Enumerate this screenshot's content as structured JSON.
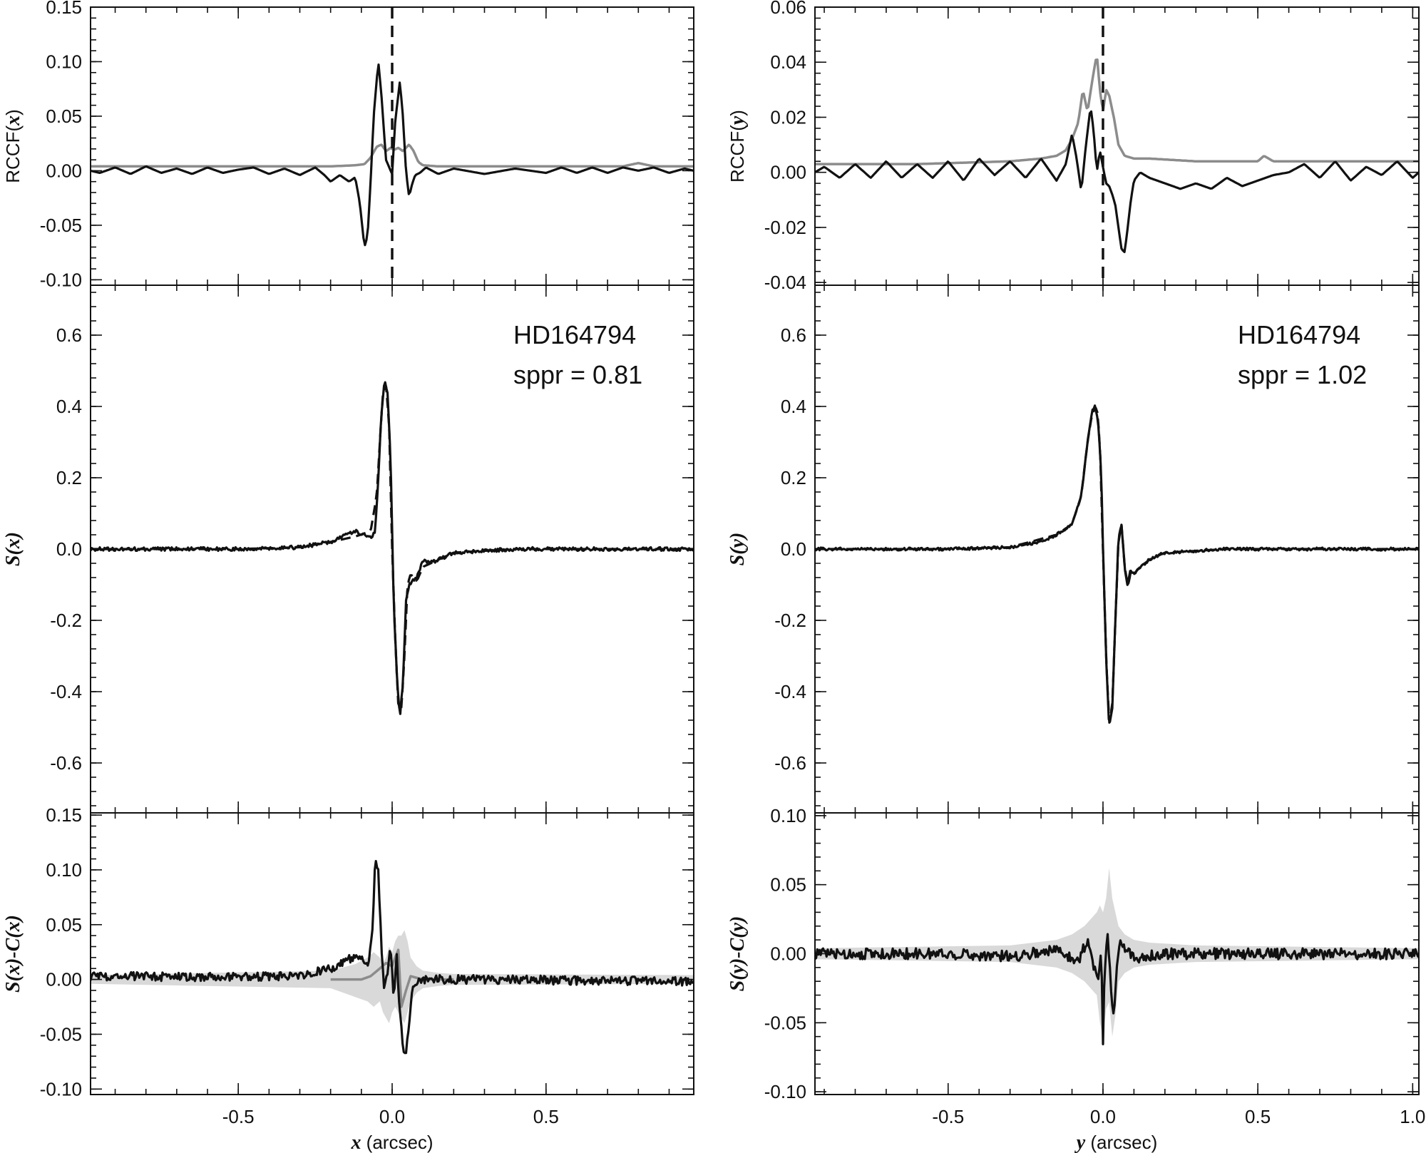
{
  "chart_data": [
    {
      "type": "line",
      "panel": "top-left",
      "ylabel": "RCCF(x)",
      "ylabel_parts": [
        "RCCF(",
        "x",
        ")"
      ],
      "xlim": [
        -0.98,
        0.98
      ],
      "ylim": [
        -0.105,
        0.15
      ],
      "yticks": [
        -0.1,
        -0.05,
        0.0,
        0.05,
        0.1,
        0.15
      ],
      "ytick_labels": [
        "-0.10",
        "-0.05",
        "0.00",
        "0.05",
        "0.10",
        "0.15"
      ],
      "vline_x": 0.0,
      "series": [
        {
          "color": "#8c8c8c",
          "x": [
            -0.98,
            -0.7,
            -0.4,
            -0.2,
            -0.12,
            -0.09,
            -0.07,
            -0.05,
            -0.035,
            -0.02,
            -0.005,
            0.005,
            0.02,
            0.035,
            0.055,
            0.07,
            0.085,
            0.1,
            0.15,
            0.3,
            0.5,
            0.75,
            0.8,
            0.85,
            0.98
          ],
          "y": [
            0.004,
            0.004,
            0.004,
            0.004,
            0.005,
            0.006,
            0.012,
            0.022,
            0.024,
            0.018,
            0.021,
            0.019,
            0.021,
            0.018,
            0.024,
            0.018,
            0.008,
            0.005,
            0.004,
            0.004,
            0.004,
            0.004,
            0.007,
            0.004,
            0.004
          ]
        },
        {
          "color": "#111111",
          "x": [
            -0.98,
            -0.95,
            -0.9,
            -0.85,
            -0.8,
            -0.75,
            -0.7,
            -0.65,
            -0.6,
            -0.55,
            -0.5,
            -0.45,
            -0.4,
            -0.35,
            -0.3,
            -0.25,
            -0.22,
            -0.2,
            -0.17,
            -0.14,
            -0.12,
            -0.105,
            -0.09,
            -0.08,
            -0.07,
            -0.06,
            -0.045,
            -0.035,
            -0.02,
            -0.005,
            0.0,
            0.01,
            0.025,
            0.035,
            0.045,
            0.055,
            0.065,
            0.075,
            0.09,
            0.11,
            0.15,
            0.2,
            0.3,
            0.4,
            0.5,
            0.55,
            0.6,
            0.65,
            0.7,
            0.75,
            0.8,
            0.85,
            0.9,
            0.95,
            0.98
          ],
          "y": [
            0.0,
            -0.002,
            0.003,
            -0.003,
            0.004,
            -0.002,
            0.002,
            -0.003,
            0.003,
            -0.002,
            0.001,
            0.003,
            -0.003,
            0.002,
            -0.004,
            0.003,
            -0.004,
            -0.01,
            -0.004,
            -0.01,
            -0.006,
            -0.03,
            -0.07,
            -0.06,
            -0.01,
            0.05,
            0.1,
            0.07,
            0.01,
            0.0,
            -0.003,
            0.045,
            0.082,
            0.05,
            0.0,
            -0.024,
            -0.012,
            -0.004,
            -0.002,
            0.003,
            -0.003,
            0.002,
            -0.003,
            0.002,
            -0.002,
            0.003,
            -0.002,
            0.003,
            -0.002,
            0.003,
            0.0,
            0.003,
            -0.002,
            0.002,
            0.0
          ]
        }
      ]
    },
    {
      "type": "line",
      "panel": "middle-left",
      "ylabel": "S(x)",
      "xlim": [
        -0.98,
        0.98
      ],
      "ylim": [
        -0.74,
        0.74
      ],
      "yticks": [
        -0.6,
        -0.4,
        -0.2,
        0.0,
        0.2,
        0.4,
        0.6
      ],
      "ytick_labels": [
        "-0.6",
        "-0.4",
        "-0.2",
        "0.0",
        "0.2",
        "0.4",
        "0.6"
      ],
      "annotation": [
        "HD164794",
        "sppr = 0.81"
      ],
      "series": [
        {
          "style": "dashed",
          "color": "#111111",
          "x": [
            -0.98,
            -0.5,
            -0.3,
            -0.2,
            -0.12,
            -0.07,
            -0.05,
            -0.04,
            -0.03,
            -0.02,
            -0.01,
            0.0,
            0.01,
            0.02,
            0.03,
            0.04,
            0.05,
            0.06,
            0.08,
            0.1,
            0.15,
            0.2,
            0.4,
            0.98
          ],
          "y": [
            0.0,
            0.0,
            0.005,
            0.02,
            0.035,
            0.05,
            0.15,
            0.3,
            0.44,
            0.46,
            0.35,
            0.0,
            -0.25,
            -0.44,
            -0.45,
            -0.3,
            -0.1,
            -0.07,
            -0.09,
            -0.05,
            -0.03,
            -0.01,
            0.0,
            0.0
          ]
        },
        {
          "color": "#111111",
          "noise": 0.005,
          "x": [
            -0.98,
            -0.5,
            -0.3,
            -0.2,
            -0.15,
            -0.12,
            -0.09,
            -0.07,
            -0.055,
            -0.045,
            -0.035,
            -0.025,
            -0.015,
            -0.005,
            0.0,
            0.005,
            0.015,
            0.025,
            0.035,
            0.045,
            0.055,
            0.065,
            0.08,
            0.1,
            0.12,
            0.15,
            0.2,
            0.4,
            0.98
          ],
          "y": [
            0.0,
            0.0,
            0.005,
            0.02,
            0.04,
            0.05,
            0.04,
            0.03,
            0.05,
            0.2,
            0.38,
            0.47,
            0.44,
            0.25,
            0.05,
            -0.15,
            -0.35,
            -0.47,
            -0.38,
            -0.15,
            -0.1,
            -0.09,
            -0.08,
            -0.03,
            -0.04,
            -0.03,
            -0.01,
            0.0,
            0.0
          ]
        }
      ]
    },
    {
      "type": "line",
      "panel": "bottom-left",
      "ylabel": "S(x)-C(x)",
      "xlabel": "x (arcsec)",
      "xlabel_parts": [
        "x",
        " (arcsec)"
      ],
      "xlim": [
        -0.98,
        0.98
      ],
      "ylim": [
        -0.105,
        0.152
      ],
      "yticks": [
        -0.1,
        -0.05,
        0.0,
        0.05,
        0.1,
        0.15
      ],
      "ytick_labels": [
        "-0.10",
        "-0.05",
        "0.00",
        "0.05",
        "0.10",
        "0.15"
      ],
      "xticks": [
        -0.5,
        0.0,
        0.5
      ],
      "xtick_labels": [
        "-0.5",
        "0.0",
        "0.5"
      ],
      "band": {
        "color": "#d9d9d9",
        "x": [
          -0.98,
          -0.2,
          -0.12,
          -0.08,
          -0.06,
          -0.04,
          -0.03,
          -0.02,
          -0.01,
          0.0,
          0.01,
          0.02,
          0.03,
          0.04,
          0.05,
          0.06,
          0.08,
          0.1,
          0.15,
          0.2,
          0.98
        ],
        "upper": [
          0.004,
          0.008,
          0.014,
          0.02,
          0.025,
          0.02,
          0.015,
          0.02,
          0.03,
          0.025,
          0.035,
          0.04,
          0.04,
          0.045,
          0.035,
          0.02,
          0.012,
          0.008,
          0.006,
          0.005,
          0.004
        ],
        "lower": [
          -0.004,
          -0.008,
          -0.016,
          -0.02,
          -0.025,
          -0.02,
          -0.03,
          -0.035,
          -0.04,
          -0.03,
          -0.025,
          -0.03,
          -0.035,
          -0.04,
          -0.03,
          -0.02,
          -0.012,
          -0.008,
          -0.006,
          -0.005,
          -0.004
        ]
      },
      "series": [
        {
          "color": "#8c8c8c",
          "x": [
            -0.2,
            -0.1,
            -0.07,
            -0.04,
            -0.02,
            0.0,
            0.01,
            0.02,
            0.03,
            0.045,
            0.06,
            0.1,
            0.2
          ],
          "y": [
            0.0,
            0.0,
            0.003,
            0.01,
            0.015,
            0.012,
            0.02,
            0.027,
            -0.025,
            -0.01,
            0.003,
            0.0,
            0.0
          ]
        },
        {
          "color": "#111111",
          "noise": 0.004,
          "x": [
            -0.98,
            -0.5,
            -0.3,
            -0.2,
            -0.13,
            -0.1,
            -0.08,
            -0.065,
            -0.055,
            -0.045,
            -0.035,
            -0.025,
            -0.015,
            -0.005,
            0.005,
            0.015,
            0.025,
            0.035,
            0.045,
            0.055,
            0.065,
            0.08,
            0.1,
            0.15,
            0.3,
            0.98
          ],
          "y": [
            0.003,
            0.002,
            0.004,
            0.01,
            0.02,
            0.018,
            0.01,
            0.04,
            0.108,
            0.1,
            0.03,
            -0.01,
            0.005,
            0.03,
            -0.015,
            0.02,
            -0.03,
            -0.06,
            -0.07,
            -0.04,
            -0.01,
            -0.003,
            0.0,
            0.0,
            0.0,
            -0.002
          ]
        }
      ]
    },
    {
      "type": "line",
      "panel": "top-right",
      "ylabel": "RCCF(y)",
      "ylabel_parts": [
        "RCCF(",
        "y",
        ")"
      ],
      "xlim": [
        -0.93,
        1.02
      ],
      "ylim": [
        -0.041,
        0.06
      ],
      "yticks": [
        -0.04,
        -0.02,
        0.0,
        0.02,
        0.04,
        0.06
      ],
      "ytick_labels": [
        "-0.04",
        "-0.02",
        "0.00",
        "0.02",
        "0.04",
        "0.06"
      ],
      "vline_x": 0.0,
      "series": [
        {
          "color": "#8c8c8c",
          "x": [
            -0.93,
            -0.6,
            -0.3,
            -0.2,
            -0.15,
            -0.12,
            -0.1,
            -0.08,
            -0.065,
            -0.05,
            -0.035,
            -0.02,
            -0.01,
            0.0,
            0.01,
            0.02,
            0.035,
            0.05,
            0.07,
            0.1,
            0.15,
            0.3,
            0.5,
            0.52,
            0.55,
            0.7,
            1.02
          ],
          "y": [
            0.003,
            0.003,
            0.004,
            0.005,
            0.006,
            0.008,
            0.012,
            0.018,
            0.03,
            0.022,
            0.033,
            0.043,
            0.03,
            0.022,
            0.03,
            0.028,
            0.02,
            0.01,
            0.006,
            0.005,
            0.005,
            0.004,
            0.004,
            0.006,
            0.004,
            0.004,
            0.004
          ]
        },
        {
          "color": "#111111",
          "x": [
            -0.93,
            -0.9,
            -0.85,
            -0.8,
            -0.75,
            -0.7,
            -0.65,
            -0.6,
            -0.55,
            -0.5,
            -0.45,
            -0.4,
            -0.35,
            -0.3,
            -0.25,
            -0.2,
            -0.15,
            -0.12,
            -0.1,
            -0.085,
            -0.07,
            -0.055,
            -0.04,
            -0.03,
            -0.02,
            -0.01,
            0.0,
            0.01,
            0.02,
            0.03,
            0.04,
            0.05,
            0.06,
            0.07,
            0.08,
            0.09,
            0.1,
            0.12,
            0.15,
            0.2,
            0.25,
            0.3,
            0.35,
            0.4,
            0.45,
            0.5,
            0.55,
            0.6,
            0.65,
            0.7,
            0.75,
            0.8,
            0.85,
            0.9,
            0.95,
            1.0,
            1.02
          ],
          "y": [
            0.0,
            0.002,
            -0.002,
            0.003,
            -0.002,
            0.004,
            -0.002,
            0.003,
            -0.002,
            0.004,
            -0.003,
            0.005,
            -0.001,
            0.004,
            -0.002,
            0.005,
            -0.003,
            0.003,
            0.014,
            0.005,
            -0.007,
            0.01,
            0.024,
            0.015,
            0.0,
            0.008,
            0.002,
            -0.004,
            -0.005,
            -0.008,
            -0.012,
            -0.02,
            -0.028,
            -0.029,
            -0.02,
            -0.01,
            -0.003,
            0.0,
            -0.002,
            -0.004,
            -0.006,
            -0.004,
            -0.006,
            -0.002,
            -0.005,
            -0.003,
            -0.001,
            0.0,
            0.003,
            -0.002,
            0.004,
            -0.003,
            0.002,
            -0.001,
            0.004,
            -0.002,
            0.0
          ]
        }
      ]
    },
    {
      "type": "line",
      "panel": "middle-right",
      "ylabel": "S(y)",
      "xlim": [
        -0.93,
        1.02
      ],
      "ylim": [
        -0.74,
        0.74
      ],
      "yticks": [
        -0.6,
        -0.4,
        -0.2,
        0.0,
        0.2,
        0.4,
        0.6
      ],
      "ytick_labels": [
        "-0.6",
        "-0.4",
        "-0.2",
        "0.0",
        "0.2",
        "0.4",
        "0.6"
      ],
      "annotation": [
        "HD164794",
        "sppr = 1.02"
      ],
      "series": [
        {
          "style": "dashed",
          "color": "#111111",
          "x": [
            -0.93,
            -0.5,
            -0.3,
            -0.15,
            -0.1,
            -0.07,
            -0.05,
            -0.035,
            -0.02,
            -0.01,
            0.0,
            0.01,
            0.02,
            0.03,
            0.04,
            0.05,
            0.06,
            0.07,
            0.08,
            0.09,
            0.1,
            0.12,
            0.15,
            0.2,
            0.4,
            1.02
          ],
          "y": [
            0.0,
            0.0,
            0.005,
            0.04,
            0.07,
            0.15,
            0.3,
            0.38,
            0.4,
            0.3,
            0.0,
            -0.3,
            -0.49,
            -0.44,
            -0.2,
            0.02,
            0.07,
            -0.05,
            -0.1,
            -0.05,
            -0.07,
            -0.05,
            -0.03,
            -0.01,
            0.0,
            0.0
          ]
        },
        {
          "color": "#111111",
          "noise": 0.004,
          "x": [
            -0.93,
            -0.5,
            -0.3,
            -0.2,
            -0.15,
            -0.1,
            -0.07,
            -0.05,
            -0.035,
            -0.025,
            -0.015,
            -0.005,
            0.0,
            0.01,
            0.02,
            0.03,
            0.04,
            0.05,
            0.06,
            0.07,
            0.08,
            0.09,
            0.1,
            0.12,
            0.15,
            0.2,
            0.4,
            1.02
          ],
          "y": [
            0.0,
            0.0,
            0.005,
            0.02,
            0.04,
            0.07,
            0.15,
            0.3,
            0.39,
            0.4,
            0.35,
            0.2,
            0.0,
            -0.3,
            -0.5,
            -0.45,
            -0.2,
            0.03,
            0.07,
            -0.05,
            -0.11,
            -0.06,
            -0.07,
            -0.05,
            -0.03,
            -0.01,
            0.0,
            0.0
          ]
        }
      ]
    },
    {
      "type": "line",
      "panel": "bottom-right",
      "ylabel": "S(y)-C(y)",
      "xlabel": "y (arcsec)",
      "xlabel_parts": [
        "y",
        " (arcsec)"
      ],
      "xlim": [
        -0.93,
        1.02
      ],
      "ylim": [
        -0.102,
        0.102
      ],
      "yticks": [
        -0.1,
        -0.05,
        0.0,
        0.05,
        0.1
      ],
      "ytick_labels": [
        "-0.10",
        "-0.05",
        "0.00",
        "0.05",
        "0.10"
      ],
      "xticks": [
        -0.5,
        0.0,
        0.5,
        1.0
      ],
      "xtick_labels": [
        "-0.5",
        "0.0",
        "0.5",
        "1.0"
      ],
      "band": {
        "color": "#d9d9d9",
        "x": [
          -0.93,
          -0.3,
          -0.15,
          -0.1,
          -0.06,
          -0.04,
          -0.02,
          -0.01,
          0.0,
          0.01,
          0.02,
          0.03,
          0.04,
          0.05,
          0.07,
          0.1,
          0.15,
          0.3,
          1.02
        ],
        "upper": [
          0.004,
          0.006,
          0.01,
          0.014,
          0.02,
          0.025,
          0.03,
          0.035,
          0.03,
          0.04,
          0.062,
          0.04,
          0.03,
          0.02,
          0.014,
          0.01,
          0.008,
          0.006,
          0.004
        ],
        "lower": [
          -0.004,
          -0.006,
          -0.01,
          -0.014,
          -0.02,
          -0.025,
          -0.03,
          -0.05,
          -0.06,
          -0.04,
          -0.035,
          -0.06,
          -0.045,
          -0.02,
          -0.014,
          -0.01,
          -0.008,
          -0.006,
          -0.004
        ]
      },
      "series": [
        {
          "color": "#111111",
          "noise": 0.004,
          "x": [
            -0.93,
            -0.5,
            -0.3,
            -0.15,
            -0.08,
            -0.05,
            -0.03,
            -0.015,
            -0.005,
            0.0,
            0.005,
            0.015,
            0.025,
            0.035,
            0.045,
            0.055,
            0.07,
            0.1,
            0.2,
            0.5,
            1.02
          ],
          "y": [
            0.0,
            0.0,
            -0.002,
            0.003,
            -0.005,
            0.01,
            -0.01,
            -0.02,
            0.005,
            -0.068,
            -0.01,
            0.015,
            -0.02,
            -0.05,
            -0.01,
            0.01,
            0.005,
            -0.003,
            0.0,
            0.0,
            0.0
          ]
        }
      ]
    }
  ]
}
